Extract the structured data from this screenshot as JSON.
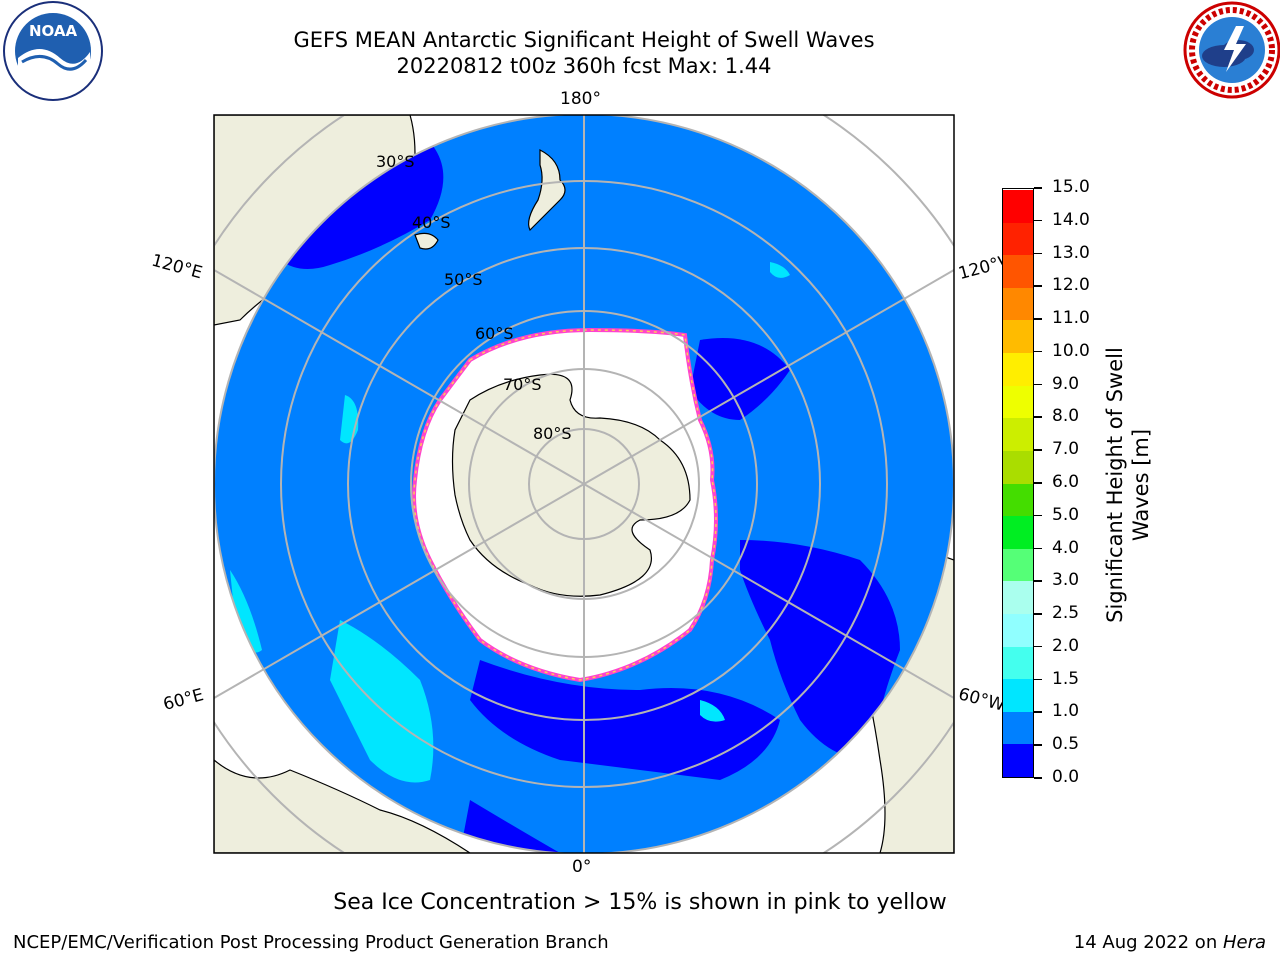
{
  "title": {
    "line1": "GEFS MEAN Antarctic Significant Height of Swell Waves",
    "line2": "20220812 t00z 360h fcst   Max: 1.44"
  },
  "map": {
    "projection": "South polar stereographic",
    "longitude_labels": {
      "top": "180°",
      "bottom": "0°",
      "left_upper": "120°E",
      "left_lower": "60°E",
      "right_upper": "120°W",
      "right_lower": "60°W"
    },
    "latitude_labels": [
      "30°S",
      "40°S",
      "50°S",
      "60°S",
      "70°S",
      "80°S"
    ],
    "colors": {
      "land": "#eeeedd",
      "sea_ice": "#ffffff",
      "grid": "#b4b4b4"
    }
  },
  "colorbar": {
    "title": "Significant Height of Swell Waves [m]",
    "tick_labels": [
      "0.0",
      "0.5",
      "1.0",
      "1.5",
      "2.0",
      "2.5",
      "3.0",
      "4.0",
      "5.0",
      "6.0",
      "7.0",
      "8.0",
      "9.0",
      "10.0",
      "11.0",
      "12.0",
      "13.0",
      "14.0",
      "15.0"
    ],
    "colors": [
      "#0000ff",
      "#0080ff",
      "#00e6ff",
      "#44ffee",
      "#90ffff",
      "#aaffee",
      "#55ff77",
      "#00ee22",
      "#44dd00",
      "#aadd00",
      "#ccee00",
      "#eeff00",
      "#ffee00",
      "#ffbb00",
      "#ff8800",
      "#ff5500",
      "#ff2200",
      "#ff0000"
    ]
  },
  "note": "Sea Ice Concentration > 15% is shown in pink to yellow",
  "footer": {
    "left": "NCEP/EMC/Verification Post Processing Product Generation Branch",
    "right_prefix": "14 Aug 2022 on ",
    "right_italic": "Hera"
  }
}
